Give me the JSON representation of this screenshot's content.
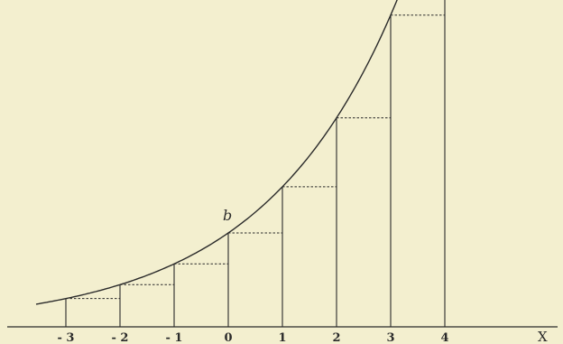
{
  "figure": {
    "curve_type": "exponential",
    "point_label": "b",
    "axis_label": "X",
    "ticks": [
      "- 3",
      "- 2",
      "- 1",
      "0",
      "1",
      "2",
      "3",
      "4"
    ],
    "ordinate_values_at_ticks": [
      -3,
      -2,
      -1,
      0,
      1,
      2,
      3,
      4
    ],
    "colors": {
      "background": "#f3efcf",
      "ink": "#2a2a2a"
    }
  }
}
